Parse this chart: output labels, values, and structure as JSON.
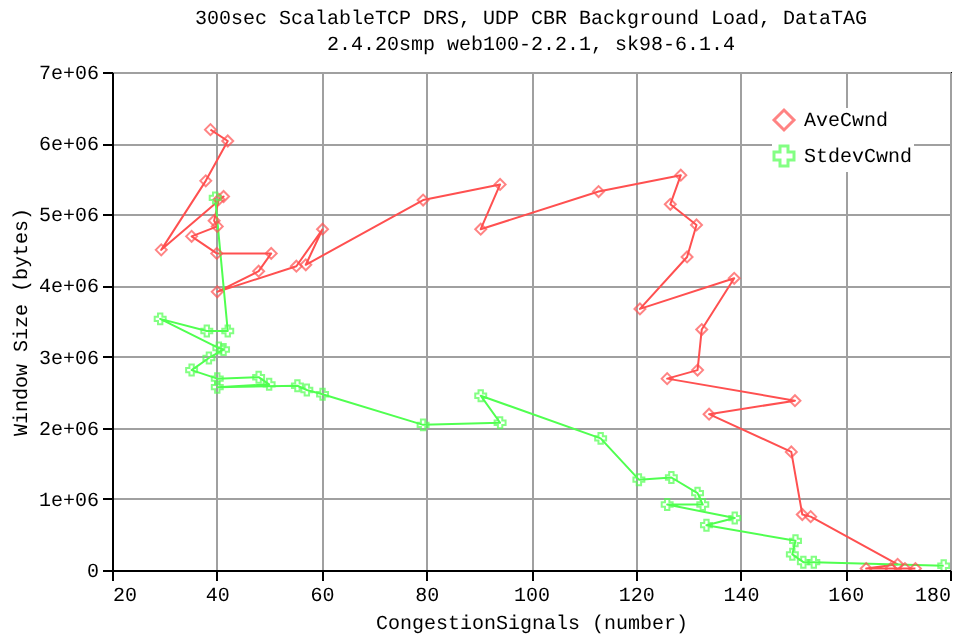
{
  "chart_data": {
    "type": "line",
    "title": "300sec ScalableTCP DRS, UDP CBR Background Load, DataTAG",
    "subtitle": "2.4.20smp web100-2.2.1, sk98-6.1.4",
    "xlabel": "CongestionSignals (number)",
    "ylabel": "Window Size (bytes)",
    "xlim": [
      20,
      180
    ],
    "xticks": [
      20,
      40,
      60,
      80,
      100,
      120,
      140,
      160,
      180
    ],
    "ylim": [
      0,
      7000000
    ],
    "yticks": [
      0,
      {
        "value": 1000000,
        "label": "1e+06"
      },
      {
        "value": 2000000,
        "label": "2e+06"
      },
      {
        "value": 3000000,
        "label": "3e+06"
      },
      {
        "value": 4000000,
        "label": "4e+06"
      },
      {
        "value": 5000000,
        "label": "5e+06"
      },
      {
        "value": 6000000,
        "label": "6e+06"
      },
      {
        "value": 7000000,
        "label": "7e+06"
      }
    ],
    "grid": true,
    "legend": "top right",
    "line_style": "solid",
    "series": [
      {
        "name": "AveCwnd",
        "color": "#ff5050",
        "marker": "diamond",
        "x": [
          38.8,
          42.1,
          37.9,
          29.4,
          41.3,
          40.4,
          39.5,
          40.1,
          35.2,
          40.0,
          50.4,
          48.0,
          40.1,
          55.2,
          60.2,
          57.0,
          79.4,
          94.1,
          90.4,
          112.9,
          128.6,
          126.6,
          131.6,
          129.8,
          120.8,
          138.8,
          132.6,
          131.8,
          126.0,
          150.4,
          134.0,
          149.7,
          151.8,
          153.4,
          170.0,
          164.0,
          168.7,
          171.4,
          173.4
        ],
        "values": [
          6190000,
          6030000,
          5470000,
          4500000,
          5250000,
          5210000,
          4910000,
          4830000,
          4690000,
          4450000,
          4450000,
          4200000,
          3910000,
          4270000,
          4790000,
          4290000,
          5200000,
          5420000,
          4790000,
          5320000,
          5550000,
          5140000,
          4850000,
          4400000,
          3670000,
          4100000,
          3380000,
          2810000,
          2690000,
          2380000,
          2190000,
          1660000,
          780000,
          750000,
          80000,
          20000,
          20000,
          20000,
          20000
        ]
      },
      {
        "name": "StdevCwnd",
        "color": "#50ff50",
        "marker": "cross",
        "x": [
          39.7,
          42.1,
          38.1,
          29.2,
          40.4,
          41.3,
          38.5,
          35.2,
          40.1,
          48.0,
          50.0,
          40.1,
          55.4,
          57.2,
          60.2,
          79.4,
          94.1,
          90.4,
          113.3,
          120.6,
          126.8,
          131.8,
          132.8,
          126.0,
          138.9,
          133.5,
          150.5,
          149.9,
          152.0,
          154.0,
          178.8
        ],
        "values": [
          5230000,
          3360000,
          3360000,
          3530000,
          3120000,
          3100000,
          2980000,
          2810000,
          2690000,
          2710000,
          2610000,
          2570000,
          2590000,
          2530000,
          2470000,
          2040000,
          2070000,
          2450000,
          1850000,
          1270000,
          1300000,
          1080000,
          920000,
          920000,
          730000,
          630000,
          410000,
          220000,
          110000,
          110000,
          60000
        ]
      }
    ]
  }
}
